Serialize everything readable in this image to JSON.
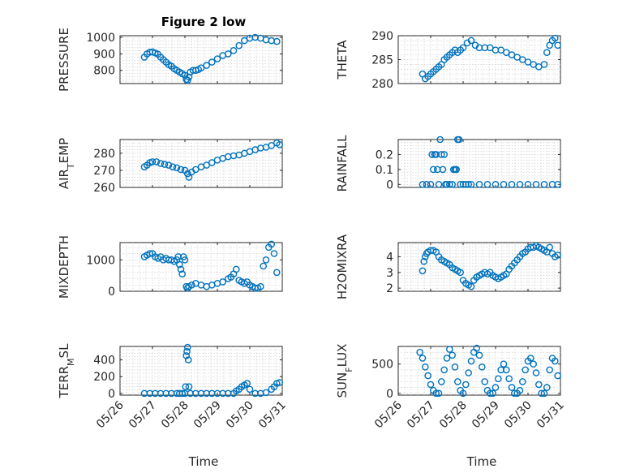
{
  "figure": {
    "title": "Figure 2 low",
    "xlabel": "Time"
  },
  "colors": {
    "marker": "#0072BD",
    "axis": "#262626",
    "grid": "#c8c8c8"
  },
  "chart_data": [
    {
      "type": "scatter",
      "ylabel": "PRESSURE",
      "xlim": [
        "05/26",
        "05/31"
      ],
      "ylim": [
        720,
        1010
      ],
      "yticks": [
        800,
        900,
        1000
      ],
      "series": [
        {
          "x": [
            "05/26 18:00",
            "05/26 20:00",
            "05/26 22:00",
            "05/27 00:00",
            "05/27 02:00",
            "05/27 04:00",
            "05/27 06:00",
            "05/27 08:00",
            "05/27 10:00",
            "05/27 12:00",
            "05/27 14:00",
            "05/27 16:00",
            "05/27 18:00",
            "05/27 20:00",
            "05/27 22:00",
            "05/28 00:00",
            "05/28 01:00",
            "05/28 02:00",
            "05/28 03:00",
            "05/28 04:00",
            "05/28 06:00",
            "05/28 08:00",
            "05/28 10:00",
            "05/28 12:00",
            "05/28 16:00",
            "05/28 20:00",
            "05/29 00:00",
            "05/29 04:00",
            "05/29 08:00",
            "05/29 12:00",
            "05/29 16:00",
            "05/29 20:00",
            "05/30 00:00",
            "05/30 04:00",
            "05/30 08:00",
            "05/30 12:00",
            "05/30 16:00",
            "05/30 20:00"
          ],
          "y": [
            880,
            900,
            910,
            912,
            906,
            898,
            880,
            865,
            850,
            835,
            825,
            810,
            800,
            790,
            780,
            770,
            745,
            740,
            760,
            790,
            800,
            800,
            805,
            815,
            830,
            850,
            870,
            890,
            900,
            920,
            950,
            980,
            995,
            1000,
            995,
            985,
            980,
            975
          ]
        }
      ]
    },
    {
      "type": "scatter",
      "ylabel": "THETA",
      "xlim": [
        "05/26",
        "05/31"
      ],
      "ylim": [
        280,
        290
      ],
      "yticks": [
        280,
        285,
        290
      ],
      "series": [
        {
          "x": [
            "05/26 18:00",
            "05/26 20:00",
            "05/26 22:00",
            "05/27 00:00",
            "05/27 02:00",
            "05/27 04:00",
            "05/27 06:00",
            "05/27 08:00",
            "05/27 10:00",
            "05/27 12:00",
            "05/27 14:00",
            "05/27 16:00",
            "05/27 18:00",
            "05/27 20:00",
            "05/27 22:00",
            "05/28 00:00",
            "05/28 03:00",
            "05/28 06:00",
            "05/28 09:00",
            "05/28 12:00",
            "05/28 16:00",
            "05/28 20:00",
            "05/29 00:00",
            "05/29 04:00",
            "05/29 08:00",
            "05/29 12:00",
            "05/29 16:00",
            "05/29 20:00",
            "05/30 00:00",
            "05/30 04:00",
            "05/30 08:00",
            "05/30 12:00",
            "05/30 14:00",
            "05/30 16:00",
            "05/30 18:00",
            "05/30 20:00",
            "05/30 22:00"
          ],
          "y": [
            282,
            281,
            281.5,
            282,
            282.5,
            283,
            283.5,
            284,
            285,
            285.5,
            286,
            286.5,
            287,
            286.5,
            287,
            287.5,
            288.5,
            289,
            288,
            287.5,
            287.5,
            287.5,
            287,
            287,
            286.5,
            286,
            285.5,
            285,
            284.5,
            284,
            283.5,
            284,
            286.5,
            288,
            289,
            289.5,
            288
          ]
        }
      ]
    },
    {
      "type": "scatter",
      "ylabel": "AIR_TEMP",
      "xlim": [
        "05/26",
        "05/31"
      ],
      "ylim": [
        260,
        288
      ],
      "yticks": [
        260,
        270,
        280
      ],
      "series": [
        {
          "x": [
            "05/26 18:00",
            "05/26 20:00",
            "05/26 22:00",
            "05/27 00:00",
            "05/27 03:00",
            "05/27 06:00",
            "05/27 09:00",
            "05/27 12:00",
            "05/27 15:00",
            "05/27 18:00",
            "05/27 21:00",
            "05/28 00:00",
            "05/28 02:00",
            "05/28 03:00",
            "05/28 05:00",
            "05/28 08:00",
            "05/28 12:00",
            "05/28 16:00",
            "05/28 20:00",
            "05/29 00:00",
            "05/29 04:00",
            "05/29 08:00",
            "05/29 12:00",
            "05/29 16:00",
            "05/29 20:00",
            "05/30 00:00",
            "05/30 04:00",
            "05/30 08:00",
            "05/30 12:00",
            "05/30 16:00",
            "05/30 20:00",
            "05/30 22:00"
          ],
          "y": [
            272,
            273,
            274.5,
            275,
            275,
            274,
            273.5,
            273,
            272,
            271.5,
            270.5,
            270,
            268,
            266,
            269,
            270.5,
            272,
            273,
            274.5,
            276,
            277,
            278,
            278.5,
            279,
            280,
            281,
            282,
            283,
            283.5,
            284.5,
            286,
            285
          ]
        }
      ]
    },
    {
      "type": "scatter",
      "ylabel": "RAINFALL",
      "xlim": [
        "05/26",
        "05/31"
      ],
      "ylim": [
        -0.02,
        0.3
      ],
      "yticks": [
        0,
        0.1,
        0.2
      ],
      "series": [
        {
          "x": [
            "05/26 18:00",
            "05/26 21:00",
            "05/27 00:00",
            "05/27 01:00",
            "05/27 02:00",
            "05/27 03:00",
            "05/27 04:00",
            "05/27 05:00",
            "05/27 06:00",
            "05/27 07:00",
            "05/27 08:00",
            "05/27 09:00",
            "05/27 10:00",
            "05/27 11:00",
            "05/27 12:00",
            "05/27 14:00",
            "05/27 16:00",
            "05/27 17:00",
            "05/27 18:00",
            "05/27 19:00",
            "05/27 20:00",
            "05/27 21:00",
            "05/27 22:00",
            "05/28 00:00",
            "05/28 02:00",
            "05/28 04:00",
            "05/28 06:00",
            "05/28 12:00",
            "05/28 18:00",
            "05/29 00:00",
            "05/29 06:00",
            "05/29 12:00",
            "05/29 18:00",
            "05/30 00:00",
            "05/30 06:00",
            "05/30 12:00",
            "05/30 18:00",
            "05/30 22:00"
          ],
          "y": [
            0,
            0,
            0,
            0.2,
            0.1,
            0.2,
            0.2,
            0.1,
            0,
            0.3,
            0.2,
            0.1,
            0.2,
            0,
            0,
            0,
            0,
            0.1,
            0.1,
            0.1,
            0.3,
            0.3,
            0,
            0,
            0,
            0,
            0,
            0,
            0,
            0,
            0,
            0,
            0,
            0,
            0,
            0,
            0,
            0
          ]
        }
      ]
    },
    {
      "type": "scatter",
      "ylabel": "MIXDEPTH",
      "xlim": [
        "05/26",
        "05/31"
      ],
      "ylim": [
        0,
        1550
      ],
      "yticks": [
        0,
        1000
      ],
      "series": [
        {
          "x": [
            "05/26 18:00",
            "05/26 20:00",
            "05/26 22:00",
            "05/27 00:00",
            "05/27 02:00",
            "05/27 04:00",
            "05/27 06:00",
            "05/27 08:00",
            "05/27 10:00",
            "05/27 12:00",
            "05/27 14:00",
            "05/27 16:00",
            "05/27 18:00",
            "05/27 19:00",
            "05/27 20:00",
            "05/27 21:00",
            "05/27 22:00",
            "05/27 23:00",
            "05/28 00:00",
            "05/28 01:00",
            "05/28 02:00",
            "05/28 03:00",
            "05/28 05:00",
            "05/28 08:00",
            "05/28 12:00",
            "05/28 16:00",
            "05/28 20:00",
            "05/29 00:00",
            "05/29 04:00",
            "05/29 08:00",
            "05/29 10:00",
            "05/29 12:00",
            "05/29 14:00",
            "05/29 16:00",
            "05/29 18:00",
            "05/29 20:00",
            "05/29 22:00",
            "05/30 00:00",
            "05/30 02:00",
            "05/30 04:00",
            "05/30 06:00",
            "05/30 08:00",
            "05/30 10:00",
            "05/30 12:00",
            "05/30 14:00",
            "05/30 16:00",
            "05/30 18:00",
            "05/30 20:00"
          ],
          "y": [
            1100,
            1150,
            1200,
            1200,
            1100,
            1050,
            1100,
            1000,
            1050,
            1000,
            1000,
            950,
            1000,
            1100,
            850,
            700,
            550,
            1100,
            1000,
            150,
            100,
            150,
            200,
            250,
            200,
            150,
            200,
            250,
            300,
            400,
            450,
            550,
            700,
            350,
            300,
            250,
            300,
            200,
            150,
            100,
            100,
            150,
            800,
            1000,
            1400,
            1500,
            1200,
            600
          ]
        }
      ]
    },
    {
      "type": "scatter",
      "ylabel": "H2OMIXRA",
      "xlim": [
        "05/26",
        "05/31"
      ],
      "ylim": [
        1.8,
        4.9
      ],
      "yticks": [
        2,
        3,
        4
      ],
      "series": [
        {
          "x": [
            "05/26 18:00",
            "05/26 19:00",
            "05/26 20:00",
            "05/26 21:00",
            "05/26 22:00",
            "05/27 00:00",
            "05/27 02:00",
            "05/27 04:00",
            "05/27 06:00",
            "05/27 08:00",
            "05/27 10:00",
            "05/27 12:00",
            "05/27 14:00",
            "05/27 16:00",
            "05/27 18:00",
            "05/27 20:00",
            "05/27 22:00",
            "05/28 00:00",
            "05/28 02:00",
            "05/28 04:00",
            "05/28 06:00",
            "05/28 08:00",
            "05/28 10:00",
            "05/28 12:00",
            "05/28 14:00",
            "05/28 16:00",
            "05/28 18:00",
            "05/28 20:00",
            "05/28 22:00",
            "05/29 00:00",
            "05/29 02:00",
            "05/29 04:00",
            "05/29 06:00",
            "05/29 08:00",
            "05/29 10:00",
            "05/29 12:00",
            "05/29 14:00",
            "05/29 16:00",
            "05/29 18:00",
            "05/29 20:00",
            "05/29 22:00",
            "05/30 00:00",
            "05/30 02:00",
            "05/30 04:00",
            "05/30 06:00",
            "05/30 08:00",
            "05/30 10:00",
            "05/30 12:00",
            "05/30 14:00",
            "05/30 16:00",
            "05/30 18:00",
            "05/30 20:00",
            "05/30 22:00"
          ],
          "y": [
            3.1,
            3.7,
            4.0,
            4.2,
            4.3,
            4.4,
            4.4,
            4.3,
            4.0,
            3.8,
            3.7,
            3.6,
            3.5,
            3.3,
            3.2,
            3.1,
            3.0,
            2.5,
            2.3,
            2.2,
            2.1,
            2.5,
            2.7,
            2.8,
            2.9,
            3.0,
            2.9,
            3.0,
            2.8,
            2.7,
            2.6,
            2.7,
            2.8,
            2.9,
            3.2,
            3.4,
            3.6,
            3.8,
            4.0,
            4.2,
            4.3,
            4.5,
            4.6,
            4.6,
            4.7,
            4.6,
            4.5,
            4.4,
            4.3,
            4.6,
            4.2,
            4.0,
            4.1
          ]
        }
      ]
    },
    {
      "type": "scatter",
      "ylabel": "TERR_MSL",
      "xlim": [
        "05/26",
        "05/31"
      ],
      "ylim": [
        -20,
        560
      ],
      "yticks": [
        0,
        200,
        400
      ],
      "series": [
        {
          "x": [
            "05/26 18:00",
            "05/26 22:00",
            "05/27 02:00",
            "05/27 06:00",
            "05/27 10:00",
            "05/27 14:00",
            "05/27 18:00",
            "05/27 20:00",
            "05/27 22:00",
            "05/28 00:00",
            "05/28 00:30",
            "05/28 01:00",
            "05/28 01:30",
            "05/28 02:00",
            "05/28 02:30",
            "05/28 03:00",
            "05/28 04:00",
            "05/28 08:00",
            "05/28 12:00",
            "05/28 16:00",
            "05/28 20:00",
            "05/29 00:00",
            "05/29 04:00",
            "05/29 08:00",
            "05/29 12:00",
            "05/29 14:00",
            "05/29 16:00",
            "05/29 18:00",
            "05/29 20:00",
            "05/29 22:00",
            "05/30 00:00",
            "05/30 04:00",
            "05/30 08:00",
            "05/30 12:00",
            "05/30 16:00",
            "05/30 18:00",
            "05/30 20:00",
            "05/30 22:00"
          ],
          "y": [
            0,
            0,
            0,
            0,
            0,
            0,
            0,
            0,
            0,
            0,
            80,
            450,
            500,
            550,
            400,
            80,
            0,
            0,
            0,
            0,
            0,
            0,
            0,
            0,
            0,
            30,
            50,
            80,
            100,
            120,
            50,
            0,
            0,
            10,
            50,
            80,
            120,
            130
          ]
        }
      ]
    },
    {
      "type": "scatter",
      "ylabel": "SUN_FLUX",
      "xlim": [
        "05/26",
        "05/31"
      ],
      "ylim": [
        -30,
        800
      ],
      "yticks": [
        0,
        500
      ],
      "series": [
        {
          "x": [
            "05/26 16:00",
            "05/26 18:00",
            "05/26 20:00",
            "05/26 22:00",
            "05/27 00:00",
            "05/27 02:00",
            "05/27 04:00",
            "05/27 06:00",
            "05/27 08:00",
            "05/27 10:00",
            "05/27 12:00",
            "05/27 14:00",
            "05/27 16:00",
            "05/27 18:00",
            "05/27 20:00",
            "05/27 22:00",
            "05/28 00:00",
            "05/28 02:00",
            "05/28 04:00",
            "05/28 06:00",
            "05/28 08:00",
            "05/28 10:00",
            "05/28 12:00",
            "05/28 14:00",
            "05/28 16:00",
            "05/28 18:00",
            "05/28 20:00",
            "05/28 22:00",
            "05/29 00:00",
            "05/29 02:00",
            "05/29 04:00",
            "05/29 06:00",
            "05/29 08:00",
            "05/29 10:00",
            "05/29 12:00",
            "05/29 14:00",
            "05/29 16:00",
            "05/29 18:00",
            "05/29 20:00",
            "05/29 22:00",
            "05/30 00:00",
            "05/30 02:00",
            "05/30 04:00",
            "05/30 06:00",
            "05/30 08:00",
            "05/30 10:00",
            "05/30 12:00",
            "05/30 14:00",
            "05/30 16:00",
            "05/30 18:00",
            "05/30 20:00",
            "05/30 22:00"
          ],
          "y": [
            700,
            600,
            450,
            300,
            150,
            50,
            0,
            0,
            200,
            400,
            600,
            750,
            650,
            450,
            200,
            50,
            0,
            150,
            350,
            550,
            700,
            770,
            650,
            450,
            200,
            50,
            0,
            0,
            100,
            250,
            400,
            500,
            400,
            250,
            100,
            0,
            0,
            50,
            200,
            400,
            550,
            600,
            500,
            350,
            150,
            0,
            0,
            100,
            400,
            600,
            550,
            300
          ]
        }
      ]
    }
  ]
}
